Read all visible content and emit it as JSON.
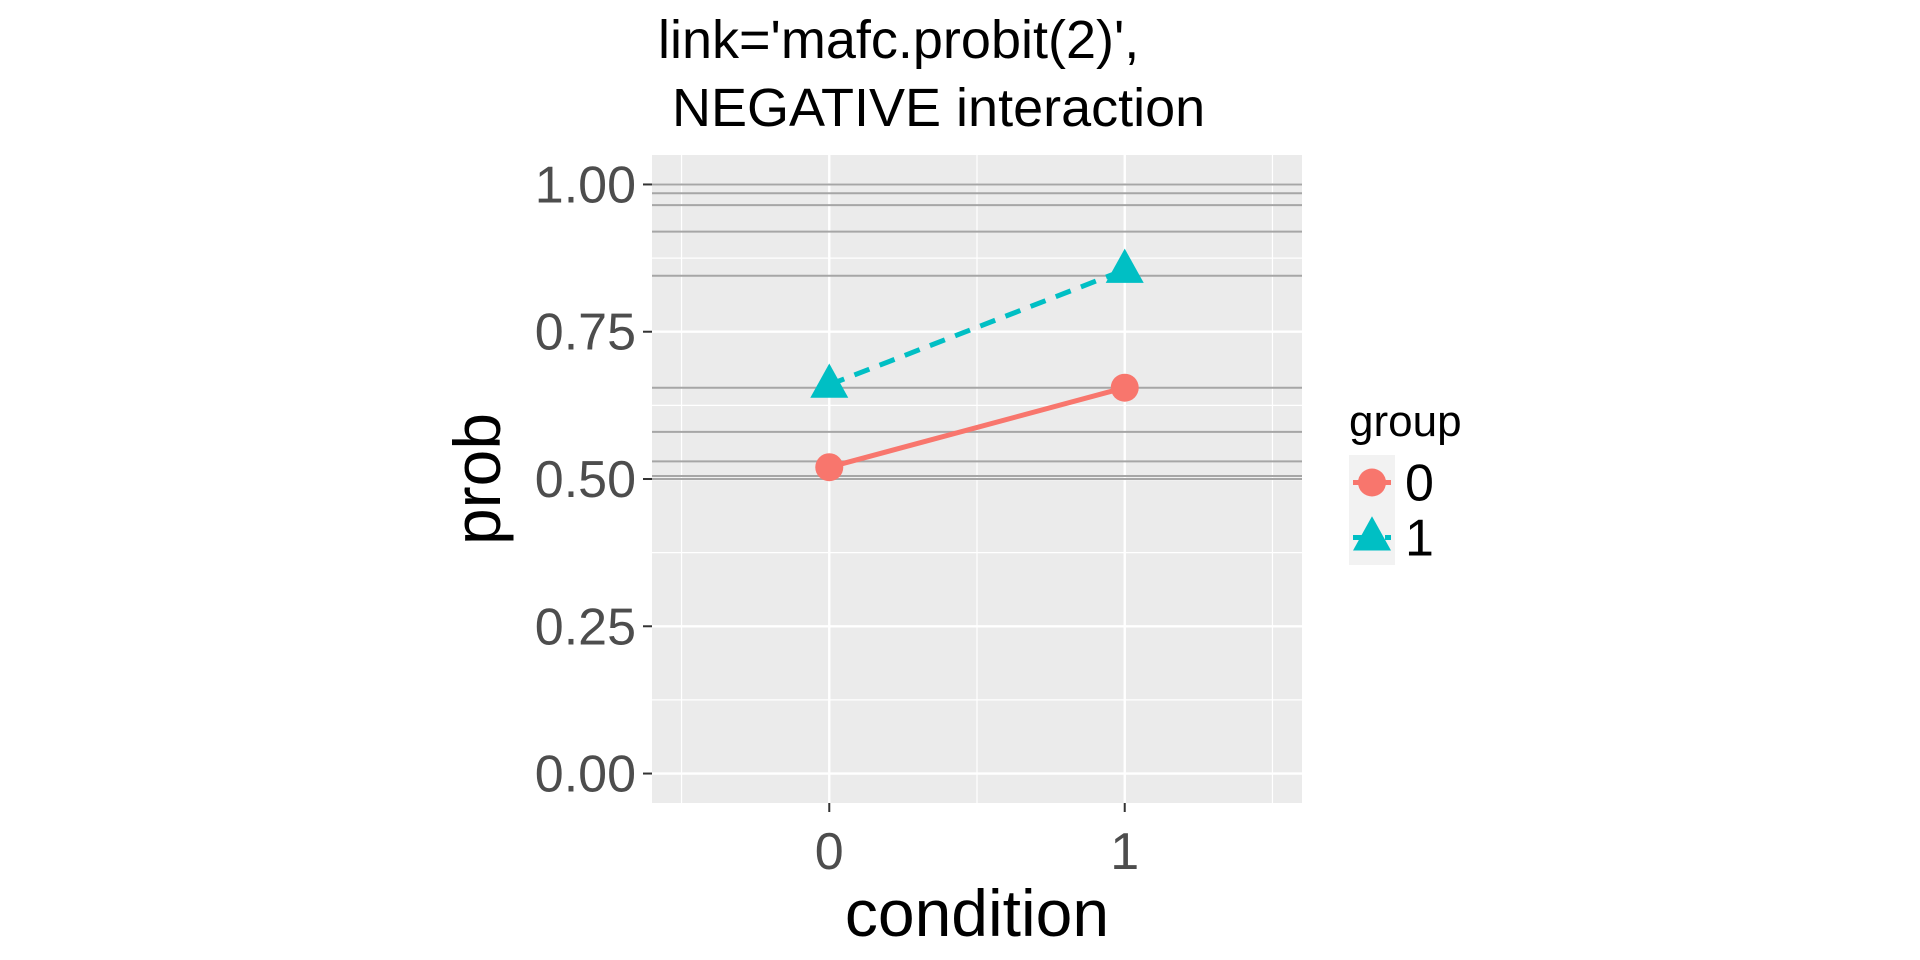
{
  "chart_data": {
    "type": "line",
    "title": "link='mafc.probit(2)',",
    "subtitle": "NEGATIVE interaction",
    "xlabel": "condition",
    "ylabel": "prob",
    "x": [
      0,
      1
    ],
    "x_tick_labels": [
      "0",
      "1"
    ],
    "xlim": [
      -0.6,
      1.6
    ],
    "ylim": [
      -0.05,
      1.05
    ],
    "y_ticks": [
      0.0,
      0.25,
      0.5,
      0.75,
      1.0
    ],
    "y_tick_labels": [
      "0.00",
      "0.25",
      "0.50",
      "0.75",
      "1.00"
    ],
    "reference_lines": [
      0.5,
      0.505,
      0.53,
      0.58,
      0.655,
      0.845,
      0.92,
      0.965,
      0.985,
      1.0
    ],
    "grid": true,
    "legend": {
      "title": "group",
      "position": "right"
    },
    "series": [
      {
        "name": "0",
        "values": [
          0.52,
          0.655
        ],
        "color": "#F8766D",
        "linestyle": "solid",
        "marker": "circle"
      },
      {
        "name": "1",
        "values": [
          0.66,
          0.855
        ],
        "color": "#00BFC4",
        "linestyle": "dashed",
        "marker": "triangle"
      }
    ]
  }
}
